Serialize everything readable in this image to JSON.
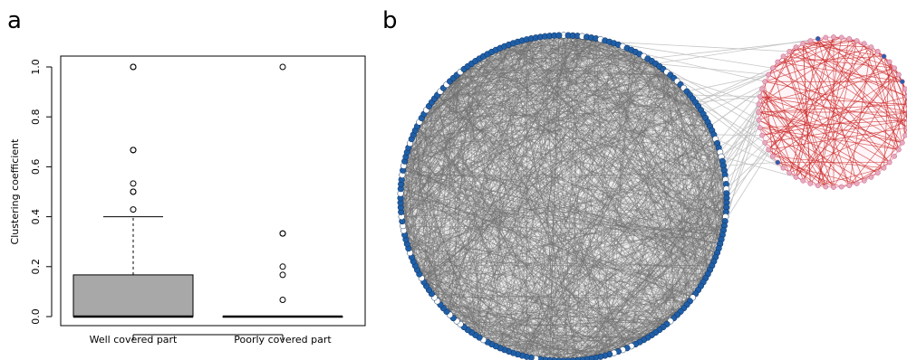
{
  "panels": {
    "a": {
      "label": "a"
    },
    "b": {
      "label": "b"
    }
  },
  "chart_data": [
    {
      "type": "box",
      "panel": "a",
      "ylabel": "Clustering coefficient",
      "categories": [
        "Well covered part",
        "Poorly covered part"
      ],
      "ylim": [
        0,
        1
      ],
      "yticks": [
        "0.0",
        "0.2",
        "0.4",
        "0.6",
        "0.8",
        "1.0"
      ],
      "box_color": "#a8a8a8",
      "groups": [
        {
          "name": "Well covered part",
          "min": 0.0,
          "q1": 0.0,
          "median": 0.0,
          "q3": 0.167,
          "whisker_high": 0.4,
          "outliers": [
            0.429,
            0.5,
            0.5,
            0.533,
            0.667,
            0.667,
            1.0,
            1.0
          ]
        },
        {
          "name": "Poorly covered part",
          "min": 0.0,
          "q1": 0.0,
          "median": 0.0,
          "q3": 0.0,
          "whisker_high": 0.0,
          "outliers": [
            0.067,
            0.167,
            0.2,
            0.333,
            0.333,
            1.0
          ]
        }
      ]
    },
    {
      "type": "network",
      "panel": "b",
      "groups": [
        {
          "name": "well-covered cluster",
          "node_color": "#1f5fa8",
          "edge_color": "#707070"
        },
        {
          "name": "poorly-covered cluster",
          "node_color": "#e8aac0",
          "edge_color": "#cc2a2a"
        }
      ],
      "inter_edge_color": "#c0c0c0"
    }
  ]
}
